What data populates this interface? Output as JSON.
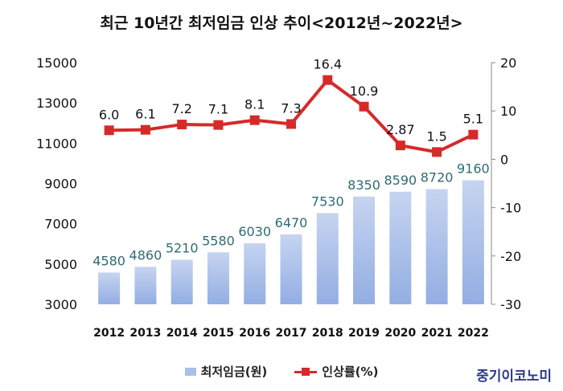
{
  "chart_data": {
    "type": "bar",
    "title": "최근 10년간 최저임금 인상 추이<2012년~2022년>",
    "categories": [
      "2012",
      "2013",
      "2014",
      "2015",
      "2016",
      "2017",
      "2018",
      "2019",
      "2020",
      "2021",
      "2022"
    ],
    "series": [
      {
        "name": "최저임금(원)",
        "type": "bar",
        "axis": "left",
        "values": [
          4580,
          4860,
          5210,
          5580,
          6030,
          6470,
          7530,
          8350,
          8590,
          8720,
          9160
        ],
        "labels": [
          "4580",
          "4860",
          "5210",
          "5580",
          "6030",
          "6470",
          "7530",
          "8350",
          "8590",
          "8720",
          "9160"
        ]
      },
      {
        "name": "인상률(%)",
        "type": "line",
        "axis": "right",
        "values": [
          6.0,
          6.1,
          7.2,
          7.1,
          8.1,
          7.3,
          16.4,
          10.9,
          2.87,
          1.5,
          5.1
        ],
        "labels": [
          "6.0",
          "6.1",
          "7.2",
          "7.1",
          "8.1",
          "7.3",
          "16.4",
          "10.9",
          "2.87",
          "1.5",
          "5.1"
        ]
      }
    ],
    "y_left": {
      "min": 3000,
      "max": 15000,
      "ticks": [
        "15000",
        "13000",
        "11000",
        "9000",
        "7000",
        "5000",
        "3000"
      ]
    },
    "y_right": {
      "min": -30,
      "max": 20,
      "ticks": [
        "20",
        "10",
        "0",
        "-10",
        "-20",
        "-30"
      ]
    },
    "grid": false,
    "legend_position": "bottom",
    "colors": {
      "bar_top": "#c6d4f0",
      "bar_bottom": "#93aee3",
      "line": "#d62a2a",
      "bar_label": "#2f6b73",
      "line_label": "#111111"
    }
  },
  "brand": "중기이코노미"
}
